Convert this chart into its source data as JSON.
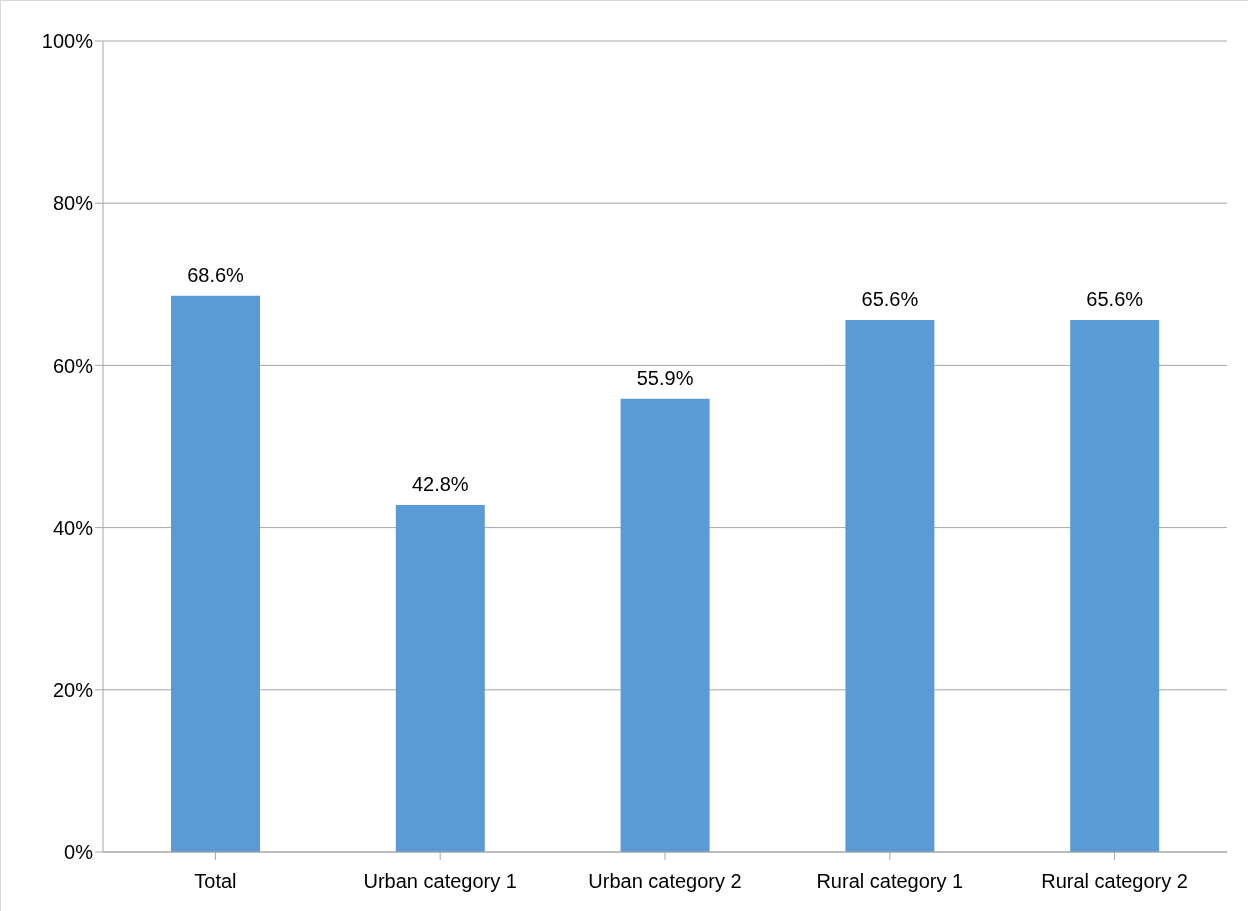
{
  "chart_data": {
    "type": "bar",
    "categories": [
      "Total",
      "Urban category 1",
      "Urban category 2",
      "Rural category 1",
      "Rural category 2"
    ],
    "values": [
      68.6,
      42.8,
      55.9,
      65.6,
      65.6
    ],
    "value_labels": [
      "68.6%",
      "42.8%",
      "55.9%",
      "65.6%",
      "65.6%"
    ],
    "color": "#5b9bd5",
    "ylim": [
      0,
      100
    ],
    "yticks": [
      {
        "value": 0,
        "label": "0%"
      },
      {
        "value": 20,
        "label": "20%"
      },
      {
        "value": 40,
        "label": "40%"
      },
      {
        "value": 60,
        "label": "60%"
      },
      {
        "value": 80,
        "label": "80%"
      },
      {
        "value": 100,
        "label": "100%"
      }
    ],
    "grid": "y"
  }
}
